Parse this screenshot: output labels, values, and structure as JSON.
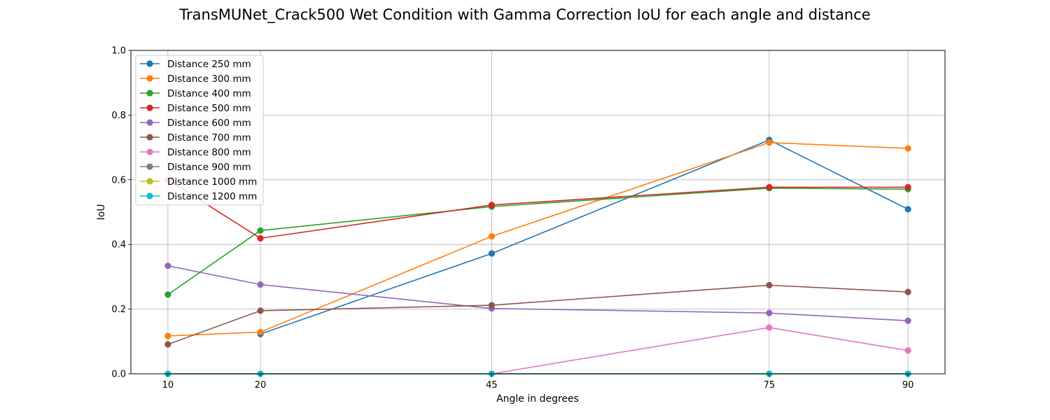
{
  "chart_data": {
    "type": "line",
    "title": "TransMUNet_Crack500 Wet Condition with Gamma Correction IoU for each angle and distance",
    "xlabel": "Angle in degrees",
    "ylabel": "IoU",
    "x": [
      10,
      20,
      45,
      75,
      90
    ],
    "xlim": [
      6,
      94
    ],
    "ylim": [
      0,
      1.0
    ],
    "yticks": [
      0.0,
      0.2,
      0.4,
      0.6,
      0.8,
      1.0
    ],
    "ytick_labels": [
      "0.0",
      "0.2",
      "0.4",
      "0.6",
      "0.8",
      "1.0"
    ],
    "xtick_labels": [
      "10",
      "20",
      "45",
      "75",
      "90"
    ],
    "grid": true,
    "legend_position": "top-left",
    "series": [
      {
        "name": "Distance 250 mm",
        "color": "#1f77b4",
        "values": [
          null,
          0.123,
          0.372,
          0.723,
          0.509
        ]
      },
      {
        "name": "Distance 300 mm",
        "color": "#ff7f0e",
        "values": [
          0.117,
          0.129,
          0.425,
          0.715,
          0.697
        ]
      },
      {
        "name": "Distance 400 mm",
        "color": "#2ca02c",
        "values": [
          0.245,
          0.443,
          0.517,
          0.574,
          0.571
        ]
      },
      {
        "name": "Distance 500 mm",
        "color": "#d62728",
        "values": [
          0.6,
          0.419,
          0.522,
          0.577,
          0.577
        ]
      },
      {
        "name": "Distance 600 mm",
        "color": "#9467bd",
        "values": [
          0.334,
          0.276,
          0.202,
          0.188,
          0.164
        ]
      },
      {
        "name": "Distance 700 mm",
        "color": "#8c564b",
        "values": [
          0.091,
          0.195,
          0.212,
          0.274,
          0.253
        ]
      },
      {
        "name": "Distance 800 mm",
        "color": "#e377c2",
        "values": [
          null,
          null,
          0.0,
          0.143,
          0.072
        ]
      },
      {
        "name": "Distance 900 mm",
        "color": "#7f7f7f",
        "values": [
          0.0,
          0.0,
          0.0,
          0.0,
          0.0
        ]
      },
      {
        "name": "Distance 1000 mm",
        "color": "#bcbd22",
        "values": [
          0.0,
          0.0,
          0.0,
          0.0,
          0.0
        ]
      },
      {
        "name": "Distance 1200 mm",
        "color": "#17becf",
        "values": [
          0.0,
          0.0,
          0.0,
          0.0,
          0.0
        ]
      }
    ]
  }
}
